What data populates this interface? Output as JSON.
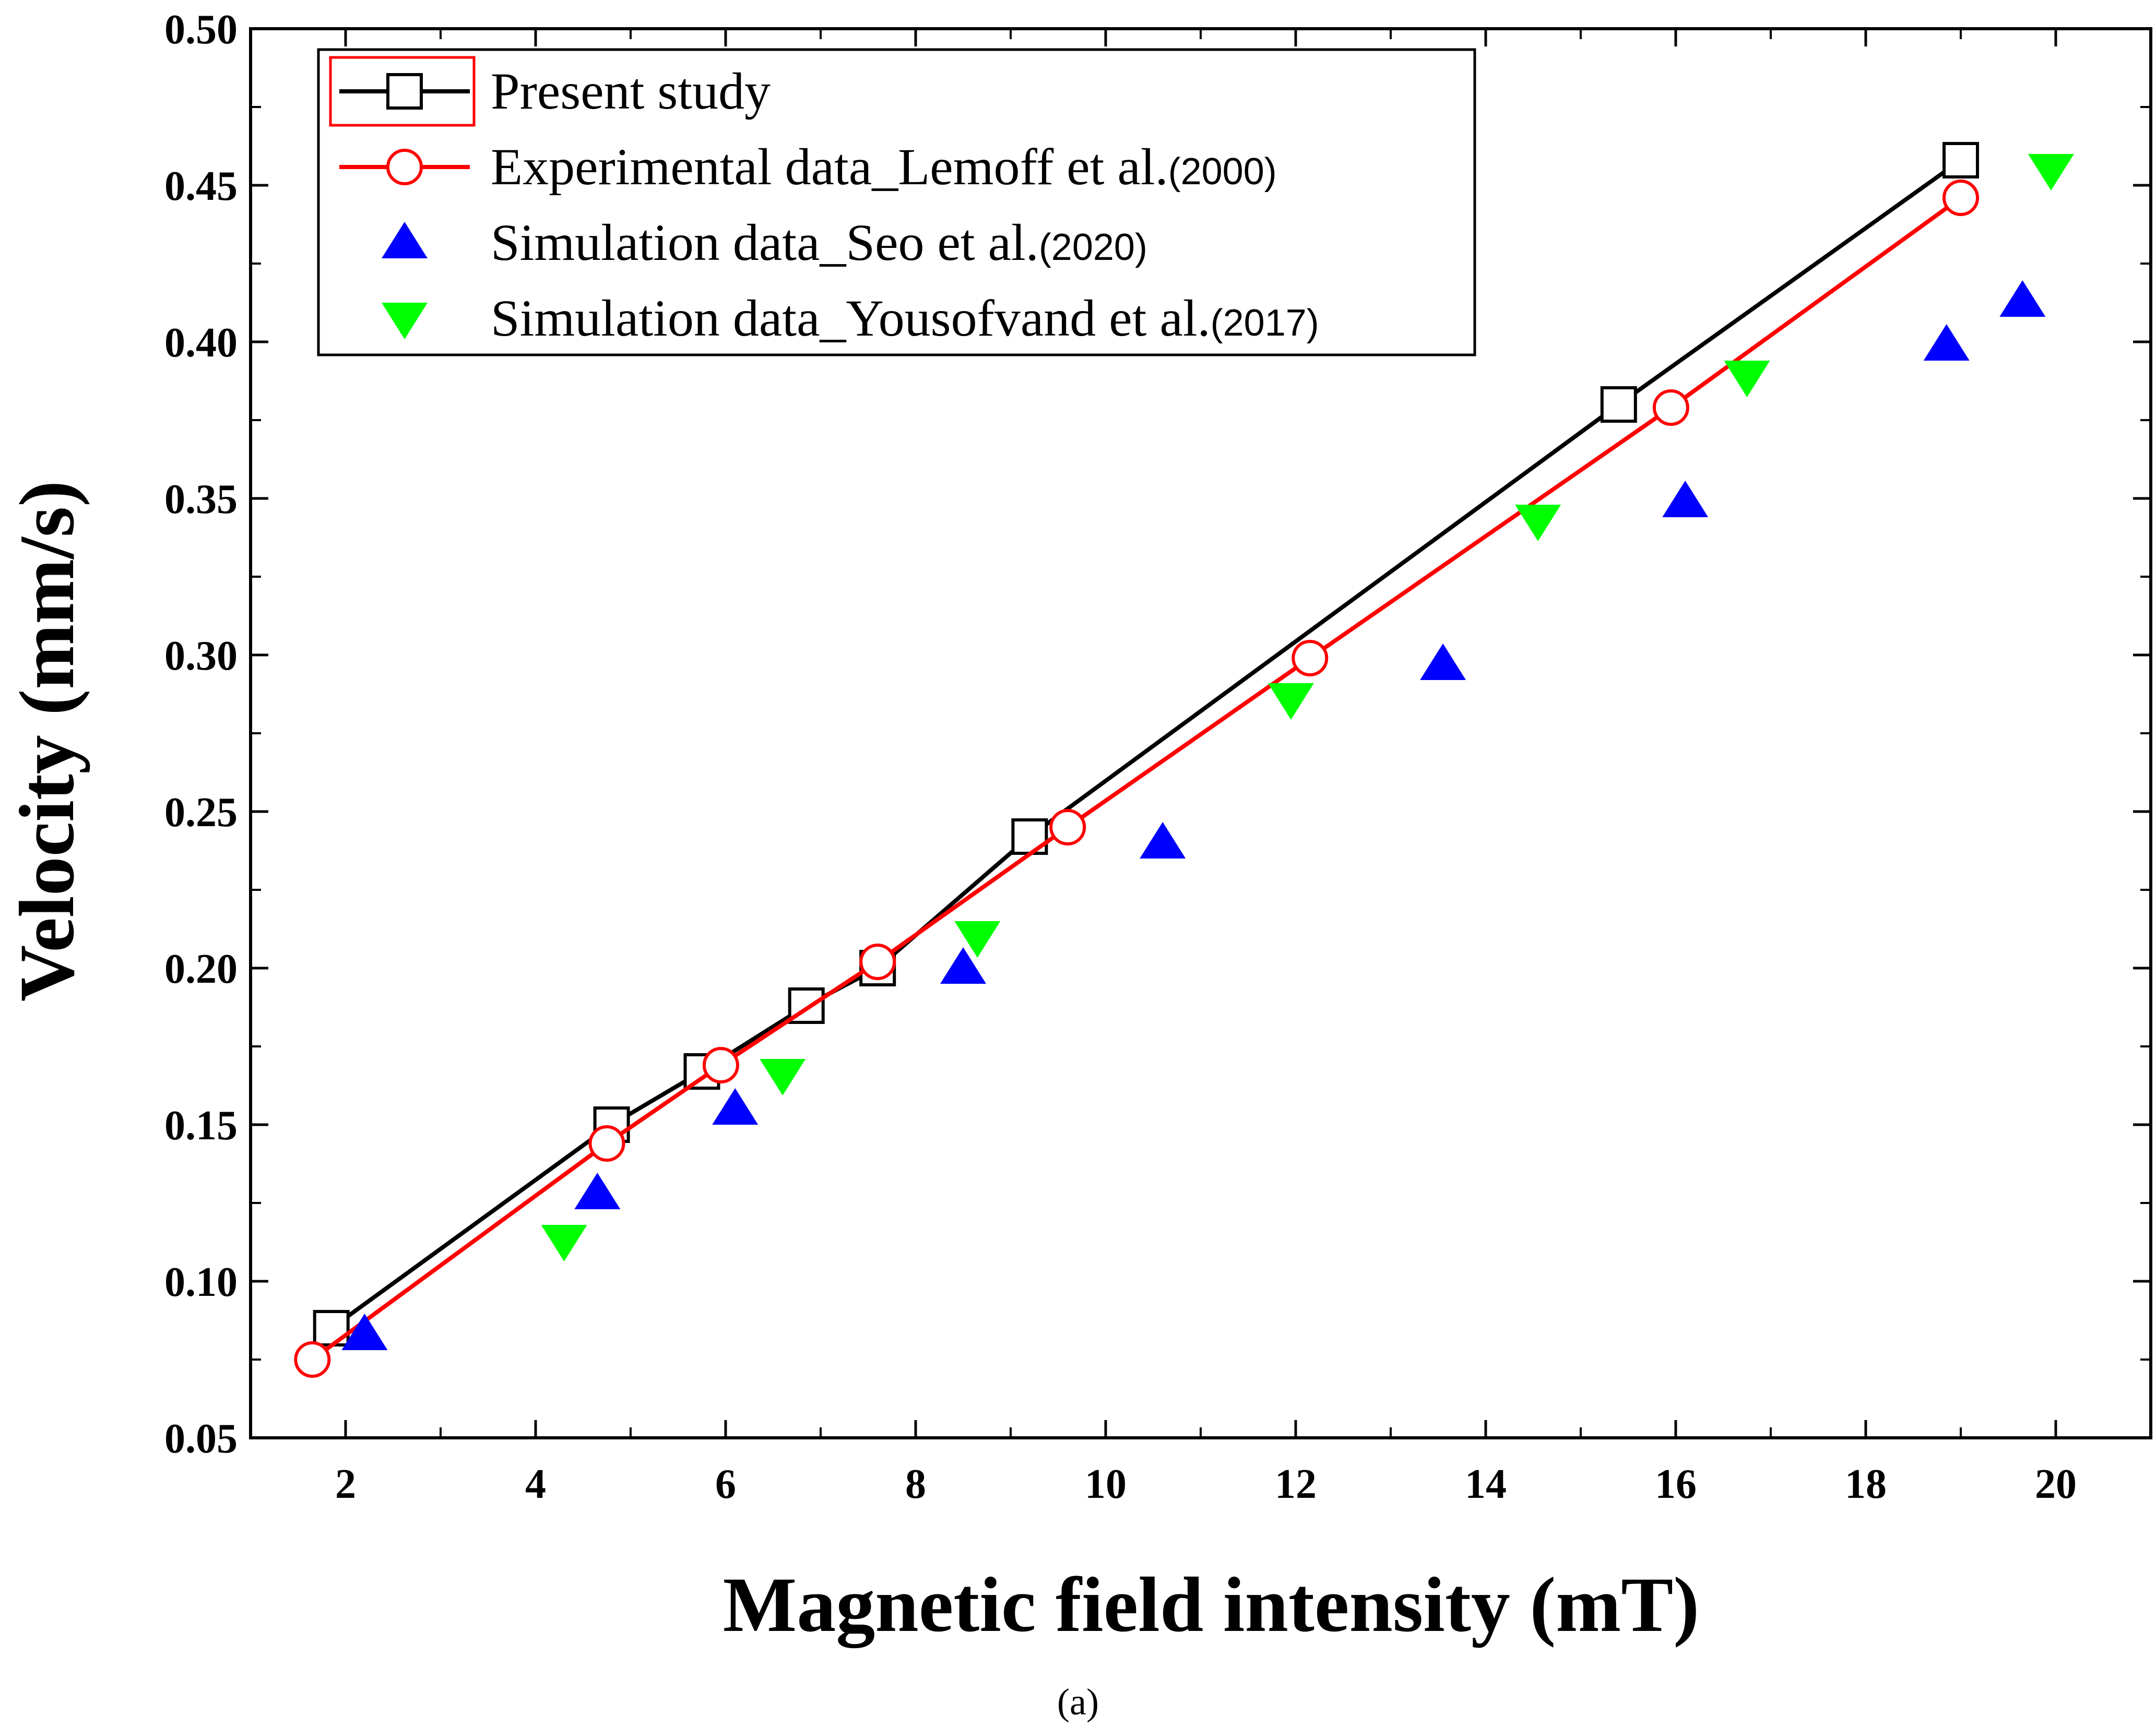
{
  "chart_data": {
    "type": "line",
    "xlabel": "Magnetic field intensity (mT)",
    "ylabel": "Velocity (mm/s)",
    "xlim": [
      1,
      21
    ],
    "ylim": [
      0.05,
      0.5
    ],
    "xticks": [
      2,
      4,
      6,
      8,
      10,
      12,
      14,
      16,
      18,
      20
    ],
    "yticks": [
      0.05,
      0.1,
      0.15,
      0.2,
      0.25,
      0.3,
      0.35,
      0.4,
      0.45,
      0.5
    ],
    "xtick_labels": [
      "2",
      "4",
      "6",
      "8",
      "10",
      "12",
      "14",
      "16",
      "18",
      "20"
    ],
    "ytick_labels": [
      "0.05",
      "0.10",
      "0.15",
      "0.20",
      "0.25",
      "0.30",
      "0.35",
      "0.40",
      "0.45",
      "0.50"
    ],
    "grid": false,
    "legend_position": "top-left",
    "caption": "(a)",
    "series": [
      {
        "name": "Present study",
        "style": "line-square",
        "color": "#000000",
        "x": [
          1.85,
          4.8,
          5.75,
          6.85,
          7.6,
          9.2,
          15.4,
          19.0
        ],
        "y": [
          0.085,
          0.15,
          0.167,
          0.188,
          0.2,
          0.242,
          0.38,
          0.458
        ]
      },
      {
        "name": "Experimental data_Lemoff et al.",
        "name_suffix": "(2000)",
        "style": "line-circle",
        "color": "#ff0000",
        "x": [
          1.65,
          4.75,
          5.95,
          7.6,
          9.6,
          12.15,
          15.95,
          19.0
        ],
        "y": [
          0.075,
          0.144,
          0.169,
          0.202,
          0.245,
          0.299,
          0.379,
          0.446
        ]
      },
      {
        "name": "Simulation data_Seo et al.",
        "name_suffix": "(2020)",
        "style": "triangle-up",
        "color": "#0000ff",
        "x": [
          2.2,
          4.65,
          6.1,
          8.5,
          10.6,
          13.55,
          16.1,
          18.85,
          19.65
        ],
        "y": [
          0.083,
          0.128,
          0.155,
          0.2,
          0.24,
          0.297,
          0.349,
          0.399,
          0.413
        ]
      },
      {
        "name": "Simulation data_Yousofvand et al.",
        "name_suffix": "(2017)",
        "style": "triangle-down",
        "color": "#00ff00",
        "x": [
          4.3,
          6.6,
          8.65,
          11.95,
          14.55,
          16.75,
          19.95
        ],
        "y": [
          0.113,
          0.166,
          0.21,
          0.286,
          0.343,
          0.389,
          0.455
        ]
      }
    ]
  }
}
